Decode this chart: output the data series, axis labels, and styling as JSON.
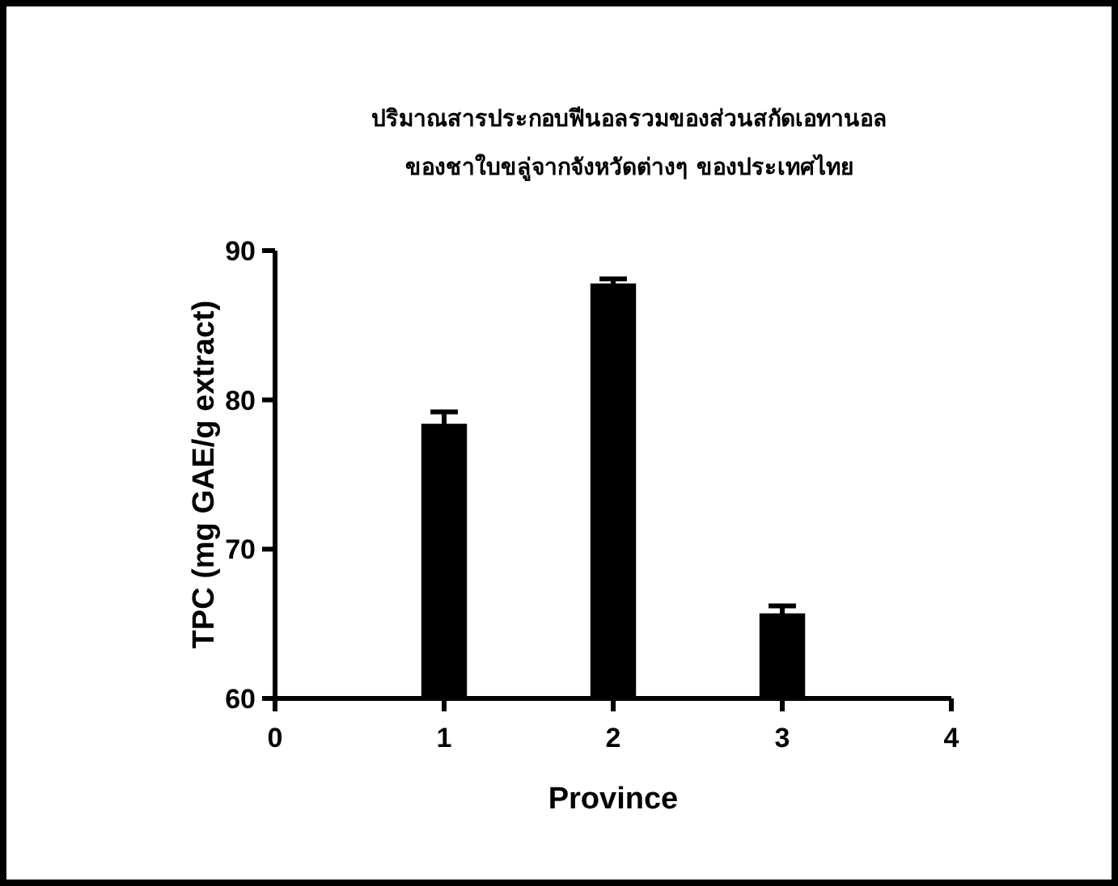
{
  "chart_data": {
    "type": "bar",
    "title": "ปริมาณสารประกอบฟีนอลรวมของส่วนสกัดเอทานอล\nของชาใบขลู่จากจังหวัดต่างๆ ของประเทศไทย",
    "xlabel": "Province",
    "ylabel": "TPC (mg GAE/g extract)",
    "x": [
      1,
      2,
      3
    ],
    "values": [
      78.4,
      87.8,
      65.7
    ],
    "errors": [
      0.8,
      0.3,
      0.5
    ],
    "color": "#000000",
    "xlim": [
      0,
      4
    ],
    "xticks": [
      0,
      1,
      2,
      3,
      4
    ],
    "ylim": [
      60,
      90
    ],
    "yticks": [
      60,
      70,
      80,
      90
    ],
    "grid": false
  }
}
